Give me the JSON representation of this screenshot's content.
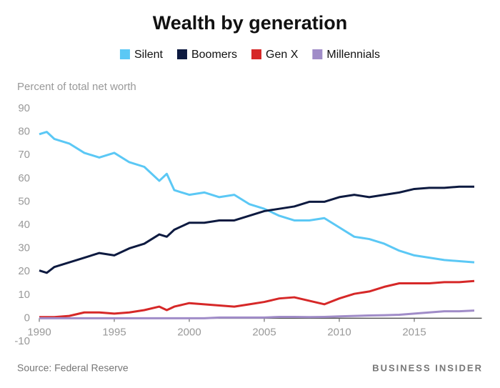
{
  "chart_data": {
    "type": "line",
    "title": "Wealth by generation",
    "y_label": "Percent of total net worth",
    "source": "Source: Federal Reserve",
    "brand": "BUSINESS INSIDER",
    "x": [
      1990,
      1990.5,
      1991,
      1992,
      1993,
      1994,
      1995,
      1996,
      1997,
      1998,
      1998.5,
      1999,
      2000,
      2001,
      2002,
      2003,
      2004,
      2005,
      2006,
      2007,
      2008,
      2009,
      2010,
      2011,
      2012,
      2013,
      2014,
      2015,
      2016,
      2017,
      2018,
      2019
    ],
    "series": [
      {
        "name": "Silent",
        "color": "#5bc8f5",
        "values": [
          79,
          80,
          77,
          75,
          71,
          69,
          71,
          67,
          65,
          59,
          62,
          55,
          53,
          54,
          52,
          53,
          49,
          47,
          44,
          42,
          42,
          43,
          39,
          35,
          34,
          32,
          29,
          27,
          26,
          25,
          24.5,
          24
        ]
      },
      {
        "name": "Boomers",
        "color": "#0d1a40",
        "values": [
          20.5,
          19.5,
          22,
          24,
          26,
          28,
          27,
          30,
          32,
          36,
          35,
          38,
          41,
          41,
          42,
          42,
          44,
          46,
          47,
          48,
          50,
          50,
          52,
          53,
          52,
          53,
          54,
          55.5,
          56,
          56,
          56.5,
          56.5
        ]
      },
      {
        "name": "Gen X",
        "color": "#d62828",
        "values": [
          0.5,
          0.5,
          0.5,
          1,
          2.5,
          2.5,
          2,
          2.5,
          3.5,
          5,
          3.5,
          5,
          6.5,
          6,
          5.5,
          5,
          6,
          7,
          8.5,
          9,
          7.5,
          6,
          8.5,
          10.5,
          11.5,
          13.5,
          15,
          15,
          15,
          15.5,
          15.5,
          16
        ]
      },
      {
        "name": "Millennials",
        "color": "#a08cc8",
        "values": [
          0,
          0,
          0,
          0,
          0,
          0,
          0,
          0,
          0,
          0,
          0,
          0,
          0,
          0,
          0.3,
          0.3,
          0.3,
          0.3,
          0.6,
          0.6,
          0.5,
          0.6,
          0.8,
          1,
          1.2,
          1.3,
          1.5,
          2,
          2.5,
          3,
          3,
          3.3
        ]
      }
    ],
    "xlim": [
      1990,
      2019.5
    ],
    "xticks": [
      1990,
      1995,
      2000,
      2005,
      2010,
      2015
    ],
    "ylim": [
      -10,
      90
    ],
    "yticks": [
      -10,
      0,
      10,
      20,
      30,
      40,
      50,
      60,
      70,
      80,
      90
    ],
    "grid": false
  }
}
